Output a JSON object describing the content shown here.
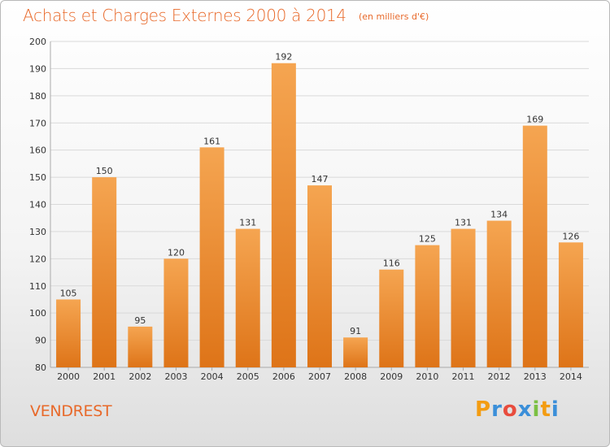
{
  "header": {
    "title": "Achats et Charges Externes 2000 à 2014",
    "unit": "(en milliers d'€)"
  },
  "footer": {
    "commune": "VENDREST",
    "logo_text": "Proxiti",
    "logo_colors": [
      "#f39c12",
      "#3b8fd9",
      "#e84c3d",
      "#3b8fd9",
      "#7bc043",
      "#f39c12",
      "#3b8fd9"
    ]
  },
  "colors": {
    "bar_top": "#f5a551",
    "bar_bottom": "#de7418",
    "grid": "#d9d9d9",
    "accent": "#e8692a"
  },
  "chart_data": {
    "type": "bar",
    "title": "Achats et Charges Externes 2000 à 2014",
    "subtitle": "(en milliers d'€)",
    "categories": [
      "2000",
      "2001",
      "2002",
      "2003",
      "2004",
      "2005",
      "2006",
      "2007",
      "2008",
      "2009",
      "2010",
      "2011",
      "2012",
      "2013",
      "2014"
    ],
    "values": [
      105,
      150,
      95,
      120,
      161,
      131,
      192,
      147,
      91,
      116,
      125,
      131,
      134,
      169,
      126
    ],
    "ylim": [
      80,
      200
    ],
    "yticks": [
      80,
      90,
      100,
      110,
      120,
      130,
      140,
      150,
      160,
      170,
      180,
      190,
      200
    ],
    "grid": true,
    "data_labels": true
  }
}
